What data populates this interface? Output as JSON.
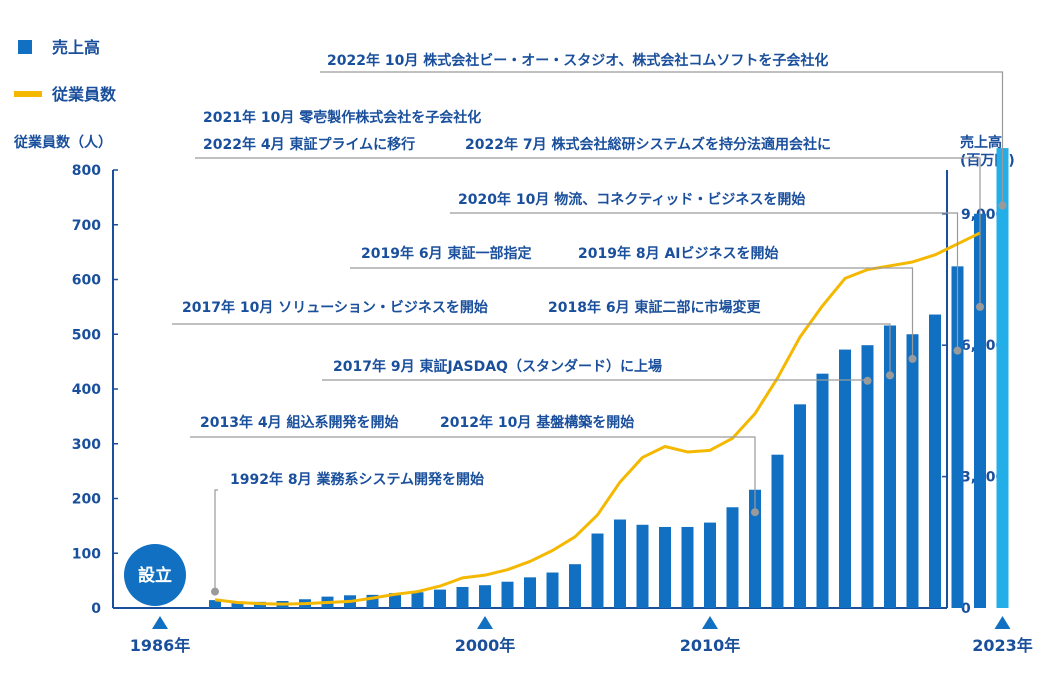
{
  "chart_data": {
    "type": "bar",
    "legend": [
      {
        "name": "売上高",
        "color": "#1170c2",
        "marker": "square"
      },
      {
        "name": "従業員数",
        "color": "#f5b800",
        "marker": "line"
      }
    ],
    "y_left": {
      "label": "従業員数（人）",
      "ticks": [
        0,
        100,
        200,
        300,
        400,
        500,
        600,
        700,
        800
      ],
      "range": [
        0,
        800
      ]
    },
    "y_right": {
      "label_lines": [
        "売上高",
        "(百万円)"
      ],
      "ticks": [
        {
          "v": 0,
          "t": "0"
        },
        {
          "v": 3000,
          "t": "3,000"
        },
        {
          "v": 6000,
          "t": "6,000"
        },
        {
          "v": 9000,
          "t": "9,000"
        }
      ],
      "range": [
        0,
        10000
      ]
    },
    "x_years": [
      {
        "year": 1986,
        "label": "1986年"
      },
      {
        "year": 2000,
        "label": "2000年"
      },
      {
        "year": 2010,
        "label": "2010年"
      },
      {
        "year": 2023,
        "label": "2023年"
      }
    ],
    "founding": {
      "year": 1986,
      "label": "設立"
    },
    "series": [
      {
        "name": "売上高",
        "color": "#1170c2",
        "highlight_color": "#23aee8",
        "years": [
          1988,
          1989,
          1990,
          1991,
          1992,
          1993,
          1994,
          1995,
          1996,
          1997,
          1998,
          1999,
          2000,
          2001,
          2002,
          2003,
          2004,
          2005,
          2006,
          2007,
          2008,
          2009,
          2010,
          2011,
          2012,
          2013,
          2014,
          2015,
          2016,
          2017,
          2018,
          2019,
          2020,
          2021,
          2022,
          2023
        ],
        "values": [
          180,
          150,
          140,
          160,
          200,
          260,
          290,
          300,
          340,
          360,
          420,
          480,
          520,
          600,
          700,
          810,
          1000,
          1700,
          2020,
          1900,
          1850,
          1850,
          1950,
          2300,
          2700,
          3500,
          4650,
          5350,
          5900,
          6000,
          6450,
          6250,
          6700,
          7800,
          9000,
          10500
        ]
      },
      {
        "name": "従業員数",
        "color": "#f5b800",
        "years": [
          1988,
          1989,
          1990,
          1991,
          1992,
          1993,
          1994,
          1995,
          1996,
          1997,
          1998,
          1999,
          2000,
          2001,
          2002,
          2003,
          2004,
          2005,
          2006,
          2007,
          2008,
          2009,
          2010,
          2011,
          2012,
          2013,
          2014,
          2015,
          2016,
          2017,
          2018,
          2019,
          2020,
          2021,
          2022
        ],
        "values": [
          15,
          10,
          8,
          7,
          8,
          10,
          12,
          18,
          25,
          30,
          40,
          55,
          60,
          70,
          85,
          105,
          130,
          170,
          230,
          275,
          295,
          285,
          288,
          310,
          355,
          420,
          495,
          552,
          602,
          618,
          625,
          632,
          645,
          665,
          685
        ]
      }
    ],
    "annotations": [
      {
        "year": 1988,
        "value": 30,
        "texts": [
          "1992年 8月 業務系システム開発を開始"
        ]
      },
      {
        "year": 2012,
        "value": 175,
        "texts": [
          "2013年 4月  組込系開発を開始",
          "2012年 10月  基盤構築を開始"
        ]
      },
      {
        "year": 2017,
        "value": 415,
        "texts": [
          "2017年 9月  東証JASDAQ（スタンダード）に上場"
        ]
      },
      {
        "year": 2018,
        "value": 425,
        "texts": [
          "2017年 10月  ソリューション・ビジネスを開始",
          "2018年 6月  東証二部に市場変更"
        ]
      },
      {
        "year": 2019,
        "value": 455,
        "texts": [
          "2019年 6月  東証一部指定",
          "2019年 8月  AIビジネスを開始"
        ]
      },
      {
        "year": 2021,
        "value": 470,
        "texts": [
          "2020年 10月  物流、コネクティッド・ビジネスを開始"
        ]
      },
      {
        "year": 2022,
        "value": 550,
        "texts": [
          "2021年 10月  零壱製作株式会社を子会社化",
          "2022年 4月  東証プライムに移行",
          "2022年 7月  株式会社総研システムズを持分法適用会社に"
        ]
      },
      {
        "year": 2023,
        "value": 735,
        "texts": [
          "2022年 10月  株式会社ビー・オー・スタジオ、株式会社コムソフトを子会社化"
        ]
      }
    ]
  }
}
